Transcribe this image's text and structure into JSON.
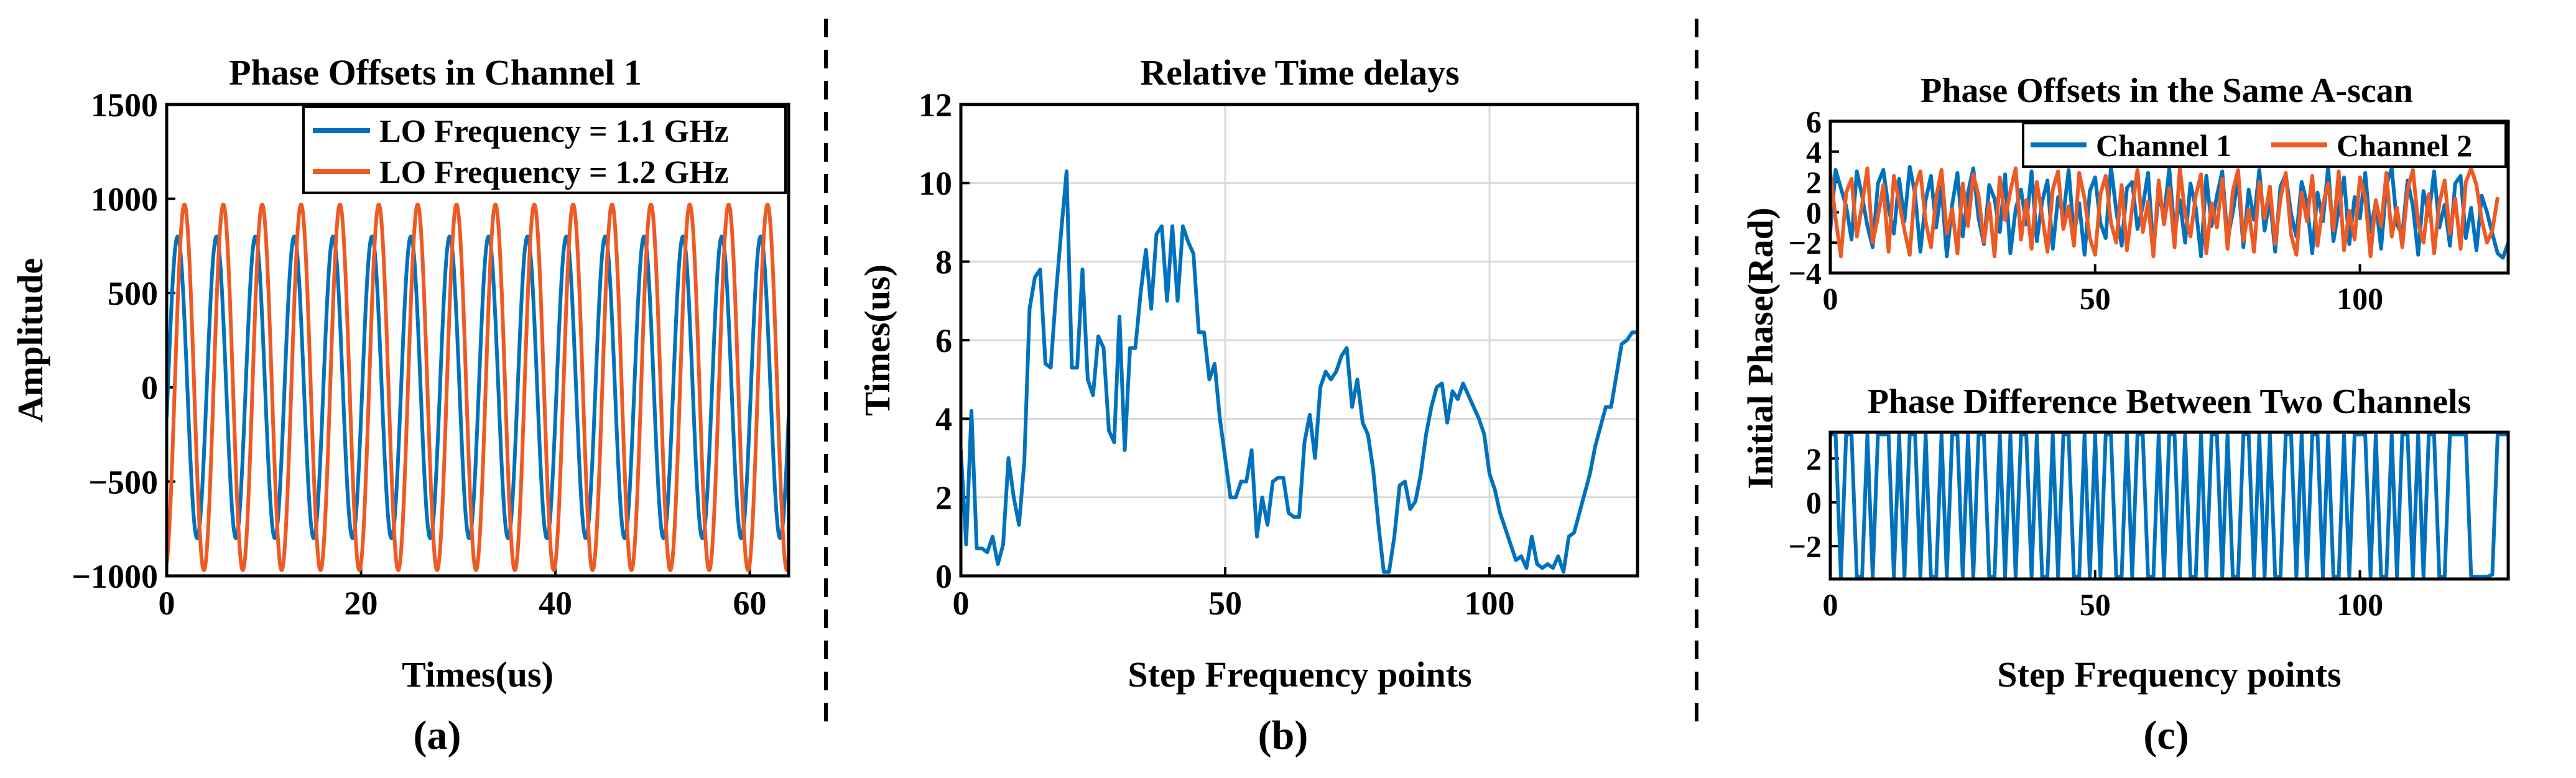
{
  "colors": {
    "blue": "#0072BD",
    "orange": "#EE5A24",
    "axis": "#000000",
    "grid": "#D9D9D9"
  },
  "chart_data": [
    {
      "id": "a",
      "type": "line",
      "panel_label": "(a)",
      "title": "Phase Offsets in Channel 1",
      "xlabel": "Times(us)",
      "ylabel": "Amplitude",
      "xlim": [
        0,
        64
      ],
      "ylim": [
        -1000,
        1500
      ],
      "xticks": [
        0,
        20,
        40,
        60
      ],
      "yticks": [
        -1000,
        -500,
        0,
        500,
        1000,
        1500
      ],
      "ytick_labels": [
        "−1000",
        "−500",
        "0",
        "500",
        "1000",
        "1500"
      ],
      "grid": false,
      "legend_position": "top-right",
      "series": [
        {
          "name": "LO Frequency = 1.1 GHz",
          "color": "#0072BD",
          "kind": "sine",
          "amplitude": 800,
          "period": 4.0,
          "phase": -0.2
        },
        {
          "name": "LO Frequency = 1.2 GHz",
          "color": "#EE5A24",
          "kind": "sine",
          "amplitude": 970,
          "period": 4.0,
          "phase": -1.3
        }
      ]
    },
    {
      "id": "b",
      "type": "line",
      "panel_label": "(b)",
      "title": "Relative Time delays",
      "xlabel": "Step Frequency points",
      "ylabel": "Times(us)",
      "xlim": [
        0,
        128
      ],
      "ylim": [
        0,
        12
      ],
      "xticks": [
        0,
        50,
        100
      ],
      "yticks": [
        0,
        2,
        4,
        6,
        8,
        10,
        12
      ],
      "grid": true,
      "series": [
        {
          "name": "",
          "color": "#0072BD",
          "values": [
            3.2,
            0.8,
            4.2,
            0.7,
            0.7,
            0.6,
            1.0,
            0.3,
            0.8,
            3.0,
            2.0,
            1.3,
            2.9,
            6.8,
            7.6,
            7.8,
            5.4,
            5.3,
            7.2,
            8.8,
            10.3,
            5.3,
            5.3,
            7.8,
            5.0,
            4.6,
            6.1,
            5.8,
            3.7,
            3.4,
            6.6,
            3.2,
            5.8,
            5.8,
            7.2,
            8.3,
            6.8,
            8.7,
            8.9,
            7.0,
            8.9,
            7.0,
            8.9,
            8.5,
            8.2,
            6.2,
            6.2,
            5.0,
            5.4,
            4.0,
            3.0,
            2.0,
            2.0,
            2.4,
            2.4,
            3.2,
            1.0,
            2.0,
            1.3,
            2.4,
            2.5,
            2.5,
            1.6,
            1.5,
            1.5,
            3.4,
            4.1,
            3.0,
            4.8,
            5.2,
            5.0,
            5.2,
            5.6,
            5.8,
            4.3,
            5.0,
            3.9,
            3.6,
            2.7,
            1.3,
            0.1,
            0.1,
            1.0,
            2.3,
            2.4,
            1.7,
            1.9,
            2.6,
            3.6,
            4.3,
            4.8,
            4.9,
            3.9,
            4.7,
            4.5,
            4.9,
            4.6,
            4.3,
            4.0,
            3.6,
            2.6,
            2.2,
            1.6,
            1.2,
            0.8,
            0.4,
            0.5,
            0.2,
            1.0,
            0.3,
            0.2,
            0.3,
            0.2,
            0.5,
            0.1,
            1.0,
            1.1,
            1.6,
            2.1,
            2.6,
            3.3,
            3.8,
            4.3,
            4.3,
            5.1,
            5.9,
            6.0,
            6.2,
            6.2
          ]
        }
      ]
    },
    {
      "id": "c1",
      "type": "line",
      "panel_label": "(c)",
      "title": "Phase Offsets in the Same A-scan",
      "xlabel": "",
      "ylabel": "Initial Phase(Rad)",
      "xlim": [
        0,
        128
      ],
      "ylim": [
        -4,
        6
      ],
      "xticks": [
        0,
        50,
        100
      ],
      "yticks": [
        -4,
        -2,
        0,
        2,
        4,
        6
      ],
      "ytick_labels": [
        "−4",
        "−2",
        "0",
        "2",
        "4",
        "6"
      ],
      "grid": false,
      "legend_position": "top-right",
      "series": [
        {
          "name": "Channel 1",
          "color": "#0072BD",
          "values": [
            -1.2,
            2.8,
            1.6,
            0.4,
            -1.8,
            2.7,
            1.1,
            -0.9,
            -2.3,
            1.9,
            2.8,
            0.3,
            -1.4,
            2.2,
            -0.6,
            3.0,
            1.2,
            -2.6,
            0.8,
            2.4,
            -1.0,
            1.7,
            -2.9,
            0.5,
            2.6,
            -1.6,
            1.3,
            2.9,
            -0.4,
            -2.1,
            1.8,
            0.9,
            -1.3,
            2.5,
            -2.7,
            0.2,
            1.5,
            -0.8,
            2.7,
            -1.9,
            0.7,
            2.1,
            -2.4,
            1.0,
            -0.2,
            2.8,
            -1.5,
            0.6,
            -2.8,
            1.4,
            2.3,
            -0.7,
            -1.7,
            3.0,
            0.1,
            -2.2,
            1.6,
            2.0,
            -1.1,
            0.4,
            2.6,
            -2.5,
            1.2,
            -0.3,
            2.9,
            -1.4,
            0.8,
            -2.0,
            1.9,
            0.3,
            -2.9,
            2.4,
            -0.9,
            1.1,
            2.7,
            -1.8,
            0.0,
            2.2,
            -2.3,
            1.5,
            -0.5,
            2.8,
            -1.2,
            0.9,
            -2.6,
            1.7,
            2.5,
            -0.1,
            -1.6,
            2.0,
            0.6,
            -2.7,
            1.3,
            -0.6,
            3.0,
            -1.9,
            0.2,
            2.3,
            -2.1,
            1.0,
            -0.4,
            2.6,
            -1.3,
            0.7,
            -2.4,
            1.8,
            2.9,
            -0.8,
            -1.5,
            2.1,
            0.4,
            -2.8,
            1.4,
            -0.2,
            2.7,
            -1.0,
            0.5,
            -2.2,
            1.9,
            2.4,
            -1.7,
            0.3,
            -2.5,
            1.1,
            0.0,
            -1.4,
            -2.7,
            -3.0,
            -2.0
          ]
        },
        {
          "name": "Channel 2",
          "color": "#EE5A24",
          "values": [
            2.6,
            -0.4,
            -2.9,
            1.3,
            2.2,
            -1.6,
            0.5,
            2.9,
            -2.0,
            -0.3,
            1.8,
            -2.6,
            2.4,
            0.7,
            -1.2,
            -2.8,
            1.6,
            2.7,
            -0.6,
            -2.3,
            1.0,
            2.8,
            -1.4,
            0.2,
            -2.7,
            1.9,
            -0.9,
            2.5,
            1.1,
            -2.0,
            0.6,
            -2.9,
            2.3,
            -0.5,
            1.4,
            2.9,
            -1.8,
            0.8,
            -2.4,
            2.0,
            -0.2,
            -2.6,
            1.5,
            2.7,
            -1.1,
            0.4,
            -2.2,
            2.6,
            0.9,
            -1.7,
            -2.8,
            1.2,
            2.4,
            -0.7,
            -2.0,
            1.8,
            -2.5,
            0.3,
            2.8,
            -1.3,
            0.7,
            -2.9,
            2.1,
            -0.8,
            1.6,
            -2.3,
            2.9,
            -0.1,
            -1.6,
            1.1,
            2.5,
            -2.7,
            0.6,
            -1.0,
            2.2,
            -2.4,
            1.4,
            2.8,
            -1.9,
            0.2,
            -2.6,
            2.0,
            -0.4,
            1.7,
            -2.1,
            0.9,
            2.6,
            -1.5,
            -2.8,
            1.3,
            -0.6,
            2.4,
            -2.2,
            0.5,
            1.9,
            -1.2,
            2.7,
            -2.5,
            0.1,
            -1.8,
            2.3,
            1.0,
            -2.9,
            0.8,
            -0.9,
            2.6,
            -1.6,
            0.3,
            -2.3,
            1.5,
            2.8,
            -0.7,
            -2.0,
            1.2,
            -2.7,
            0.6,
            2.1,
            -1.4,
            0.9,
            -2.4,
            2.0,
            2.9,
            1.8,
            -0.5,
            -2.0,
            -1.2,
            1.0
          ]
        }
      ]
    },
    {
      "id": "c2",
      "type": "line",
      "title": "Phase Difference Between Two Channels",
      "xlabel": "Step Frequency points",
      "ylabel": "",
      "xlim": [
        0,
        128
      ],
      "ylim": [
        -3.5,
        3.2
      ],
      "xticks": [
        0,
        50,
        100
      ],
      "yticks": [
        -2,
        0,
        2
      ],
      "ytick_labels": [
        "−2",
        "0",
        "2"
      ],
      "grid": false,
      "series": [
        {
          "name": "",
          "color": "#0072BD",
          "values": [
            3.1,
            3.1,
            -3.4,
            3.1,
            3.1,
            -3.4,
            -3.4,
            3.1,
            -3.4,
            3.1,
            3.1,
            3.1,
            -3.4,
            3.1,
            -3.4,
            3.1,
            3.1,
            -3.4,
            3.1,
            -3.4,
            -3.4,
            3.1,
            -3.4,
            3.1,
            3.1,
            -3.4,
            3.1,
            -3.4,
            3.1,
            3.1,
            -3.4,
            -3.4,
            3.1,
            -3.4,
            3.1,
            -3.4,
            3.1,
            3.1,
            -3.4,
            3.1,
            -3.4,
            -3.4,
            3.1,
            -3.4,
            3.1,
            3.1,
            -3.4,
            -3.4,
            3.1,
            -3.4,
            3.1,
            -3.4,
            3.1,
            3.1,
            -3.4,
            -3.4,
            3.1,
            -3.4,
            3.1,
            3.1,
            -3.4,
            -3.4,
            3.1,
            -3.4,
            3.1,
            3.1,
            -3.4,
            3.1,
            -3.4,
            -3.4,
            3.1,
            -3.4,
            3.1,
            3.1,
            -3.4,
            3.1,
            -3.4,
            -3.4,
            3.1,
            3.1,
            -3.4,
            3.1,
            -3.4,
            3.1,
            -3.4,
            -3.4,
            3.1,
            3.1,
            -3.4,
            3.1,
            -3.4,
            3.1,
            3.1,
            -3.4,
            3.1,
            -3.4,
            -3.4,
            3.1,
            -3.4,
            3.1,
            3.1,
            3.1,
            -3.4,
            3.1,
            -3.4,
            -3.4,
            3.1,
            -3.4,
            3.1,
            3.1,
            -3.4,
            3.1,
            -3.4,
            3.1,
            3.1,
            -3.4,
            -3.4,
            3.1,
            3.1,
            3.1,
            3.1,
            -3.4,
            -3.4,
            -3.4,
            -3.4,
            -3.3,
            3.1,
            3.1,
            3.1
          ]
        }
      ]
    }
  ]
}
